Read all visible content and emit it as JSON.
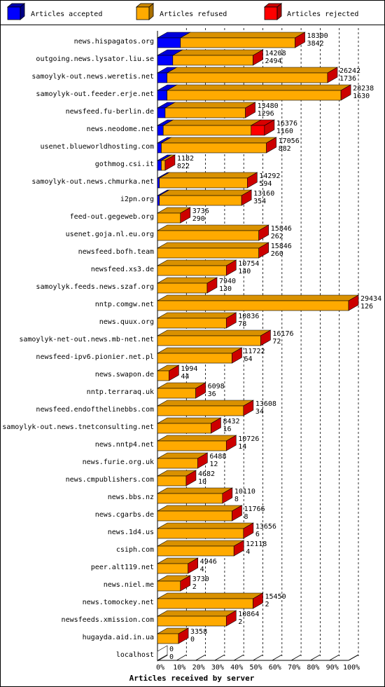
{
  "chart_data": {
    "type": "bar",
    "orientation": "horizontal",
    "stacked": true,
    "xlabel": "Articles received by server",
    "x_ticks": [
      "0%",
      "10%",
      "20%",
      "30%",
      "40%",
      "50%",
      "60%",
      "70%",
      "80%",
      "90%",
      "100%"
    ],
    "legend_position": "top",
    "series": [
      {
        "name": "Articles accepted",
        "color": "#0000ff"
      },
      {
        "name": "Articles refused",
        "color": "#ffaa00"
      },
      {
        "name": "Articles rejected",
        "color": "#ff0000"
      }
    ],
    "rows": [
      {
        "server": "news.hispagatos.org",
        "total": 18300,
        "refused": 3842,
        "accepted_pct": 12,
        "refused_pct": 60,
        "rejected_pct": 0
      },
      {
        "server": "outgoing.news.lysator.liu.se",
        "total": 14208,
        "refused": 2494,
        "accepted_pct": 8,
        "refused_pct": 42,
        "rejected_pct": 0
      },
      {
        "server": "samoylyk-out.news.weretis.net",
        "total": 26242,
        "refused": 1736,
        "accepted_pct": 5,
        "refused_pct": 84,
        "rejected_pct": 0
      },
      {
        "server": "samoylyk-out.feeder.erje.net",
        "total": 28238,
        "refused": 1630,
        "accepted_pct": 5,
        "refused_pct": 91,
        "rejected_pct": 0
      },
      {
        "server": "newsfeed.fu-berlin.de",
        "total": 13480,
        "refused": 1296,
        "accepted_pct": 4,
        "refused_pct": 42,
        "rejected_pct": 0
      },
      {
        "server": "news.neodome.net",
        "total": 16376,
        "refused": 1160,
        "accepted_pct": 3,
        "refused_pct": 46,
        "rejected_pct": 7
      },
      {
        "server": "usenet.blueworldhosting.com",
        "total": 17056,
        "refused": 882,
        "accepted_pct": 2,
        "refused_pct": 55,
        "rejected_pct": 0
      },
      {
        "server": "gothmog.csi.it",
        "total": 1182,
        "refused": 822,
        "accepted_pct": 2,
        "refused_pct": 2,
        "rejected_pct": 0
      },
      {
        "server": "samoylyk-out.news.chmurka.net",
        "total": 14292,
        "refused": 594,
        "accepted_pct": 1,
        "refused_pct": 46,
        "rejected_pct": 0
      },
      {
        "server": "i2pn.org",
        "total": 13160,
        "refused": 354,
        "accepted_pct": 1,
        "refused_pct": 43,
        "rejected_pct": 0
      },
      {
        "server": "feed-out.gegeweb.org",
        "total": 3736,
        "refused": 290,
        "accepted_pct": 0,
        "refused_pct": 12,
        "rejected_pct": 0
      },
      {
        "server": "usenet.goja.nl.eu.org",
        "total": 15846,
        "refused": 262,
        "accepted_pct": 0,
        "refused_pct": 53,
        "rejected_pct": 0
      },
      {
        "server": "newsfeed.bofh.team",
        "total": 15846,
        "refused": 260,
        "accepted_pct": 0,
        "refused_pct": 53,
        "rejected_pct": 0
      },
      {
        "server": "newsfeed.xs3.de",
        "total": 10754,
        "refused": 140,
        "accepted_pct": 0,
        "refused_pct": 36,
        "rejected_pct": 0
      },
      {
        "server": "samoylyk.feeds.news.szaf.org",
        "total": 7940,
        "refused": 130,
        "accepted_pct": 0,
        "refused_pct": 26,
        "rejected_pct": 0
      },
      {
        "server": "nntp.comgw.net",
        "total": 29434,
        "refused": 126,
        "accepted_pct": 0,
        "refused_pct": 100,
        "rejected_pct": 0
      },
      {
        "server": "news.quux.org",
        "total": 10836,
        "refused": 78,
        "accepted_pct": 0,
        "refused_pct": 36,
        "rejected_pct": 0
      },
      {
        "server": "samoylyk-net-out.news.mb-net.net",
        "total": 16176,
        "refused": 72,
        "accepted_pct": 0,
        "refused_pct": 54,
        "rejected_pct": 0
      },
      {
        "server": "newsfeed-ipv6.pionier.net.pl",
        "total": 11722,
        "refused": 64,
        "accepted_pct": 0,
        "refused_pct": 39,
        "rejected_pct": 0
      },
      {
        "server": "news.swapon.de",
        "total": 1994,
        "refused": 44,
        "accepted_pct": 0,
        "refused_pct": 6,
        "rejected_pct": 0
      },
      {
        "server": "nntp.terraraq.uk",
        "total": 6098,
        "refused": 36,
        "accepted_pct": 0,
        "refused_pct": 20,
        "rejected_pct": 0
      },
      {
        "server": "newsfeed.endofthelinebbs.com",
        "total": 13608,
        "refused": 34,
        "accepted_pct": 0,
        "refused_pct": 45,
        "rejected_pct": 0
      },
      {
        "server": "samoylyk-out.news.tnetconsulting.net",
        "total": 8432,
        "refused": 16,
        "accepted_pct": 0,
        "refused_pct": 28,
        "rejected_pct": 0
      },
      {
        "server": "news.nntp4.net",
        "total": 10726,
        "refused": 14,
        "accepted_pct": 0,
        "refused_pct": 36,
        "rejected_pct": 0
      },
      {
        "server": "news.furie.org.uk",
        "total": 6488,
        "refused": 12,
        "accepted_pct": 0,
        "refused_pct": 21,
        "rejected_pct": 0
      },
      {
        "server": "news.cmpublishers.com",
        "total": 4682,
        "refused": 10,
        "accepted_pct": 0,
        "refused_pct": 15,
        "rejected_pct": 0
      },
      {
        "server": "news.bbs.nz",
        "total": 10110,
        "refused": 8,
        "accepted_pct": 0,
        "refused_pct": 34,
        "rejected_pct": 0
      },
      {
        "server": "news.cgarbs.de",
        "total": 11766,
        "refused": 8,
        "accepted_pct": 0,
        "refused_pct": 39,
        "rejected_pct": 0
      },
      {
        "server": "news.1d4.us",
        "total": 13656,
        "refused": 6,
        "accepted_pct": 0,
        "refused_pct": 45,
        "rejected_pct": 0
      },
      {
        "server": "csiph.com",
        "total": 12118,
        "refused": 4,
        "accepted_pct": 0,
        "refused_pct": 40,
        "rejected_pct": 0
      },
      {
        "server": "peer.alt119.net",
        "total": 4946,
        "refused": 4,
        "accepted_pct": 0,
        "refused_pct": 16,
        "rejected_pct": 0
      },
      {
        "server": "news.niel.me",
        "total": 3730,
        "refused": 2,
        "accepted_pct": 0,
        "refused_pct": 12,
        "rejected_pct": 0
      },
      {
        "server": "news.tomockey.net",
        "total": 15450,
        "refused": 2,
        "accepted_pct": 0,
        "refused_pct": 50,
        "rejected_pct": 0
      },
      {
        "server": "newsfeeds.xmission.com",
        "total": 10864,
        "refused": 2,
        "accepted_pct": 0,
        "refused_pct": 36,
        "rejected_pct": 0
      },
      {
        "server": "hugayda.aid.in.ua",
        "total": 3358,
        "refused": 0,
        "accepted_pct": 0,
        "refused_pct": 11,
        "rejected_pct": 0
      },
      {
        "server": "localhost",
        "total": 0,
        "refused": 0,
        "accepted_pct": 0,
        "refused_pct": 0,
        "rejected_pct": 0
      }
    ]
  }
}
